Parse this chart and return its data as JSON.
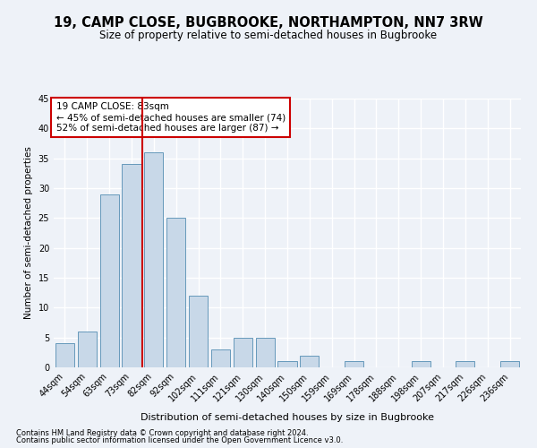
{
  "title": "19, CAMP CLOSE, BUGBROOKE, NORTHAMPTON, NN7 3RW",
  "subtitle": "Size of property relative to semi-detached houses in Bugbrooke",
  "xlabel": "Distribution of semi-detached houses by size in Bugbrooke",
  "ylabel": "Number of semi-detached properties",
  "bins": [
    "44sqm",
    "54sqm",
    "63sqm",
    "73sqm",
    "82sqm",
    "92sqm",
    "102sqm",
    "111sqm",
    "121sqm",
    "130sqm",
    "140sqm",
    "150sqm",
    "159sqm",
    "169sqm",
    "178sqm",
    "188sqm",
    "198sqm",
    "207sqm",
    "217sqm",
    "226sqm",
    "236sqm"
  ],
  "values": [
    4,
    6,
    29,
    34,
    36,
    25,
    12,
    3,
    5,
    5,
    1,
    2,
    0,
    1,
    0,
    0,
    1,
    0,
    1,
    0,
    1
  ],
  "bar_color": "#c8d8e8",
  "bar_edge_color": "#6699bb",
  "vline_index": 4,
  "annotation_text": "19 CAMP CLOSE: 83sqm\n← 45% of semi-detached houses are smaller (74)\n52% of semi-detached houses are larger (87) →",
  "annotation_box_color": "#ffffff",
  "annotation_box_edge_color": "#cc0000",
  "vline_color": "#cc0000",
  "ylim": [
    0,
    45
  ],
  "yticks": [
    0,
    5,
    10,
    15,
    20,
    25,
    30,
    35,
    40,
    45
  ],
  "footnote1": "Contains HM Land Registry data © Crown copyright and database right 2024.",
  "footnote2": "Contains public sector information licensed under the Open Government Licence v3.0.",
  "bg_color": "#eef2f8",
  "grid_color": "#ffffff",
  "title_fontsize": 10.5,
  "subtitle_fontsize": 8.5,
  "xlabel_fontsize": 8,
  "ylabel_fontsize": 7.5,
  "tick_fontsize": 7,
  "annotation_fontsize": 7.5,
  "footnote_fontsize": 6
}
